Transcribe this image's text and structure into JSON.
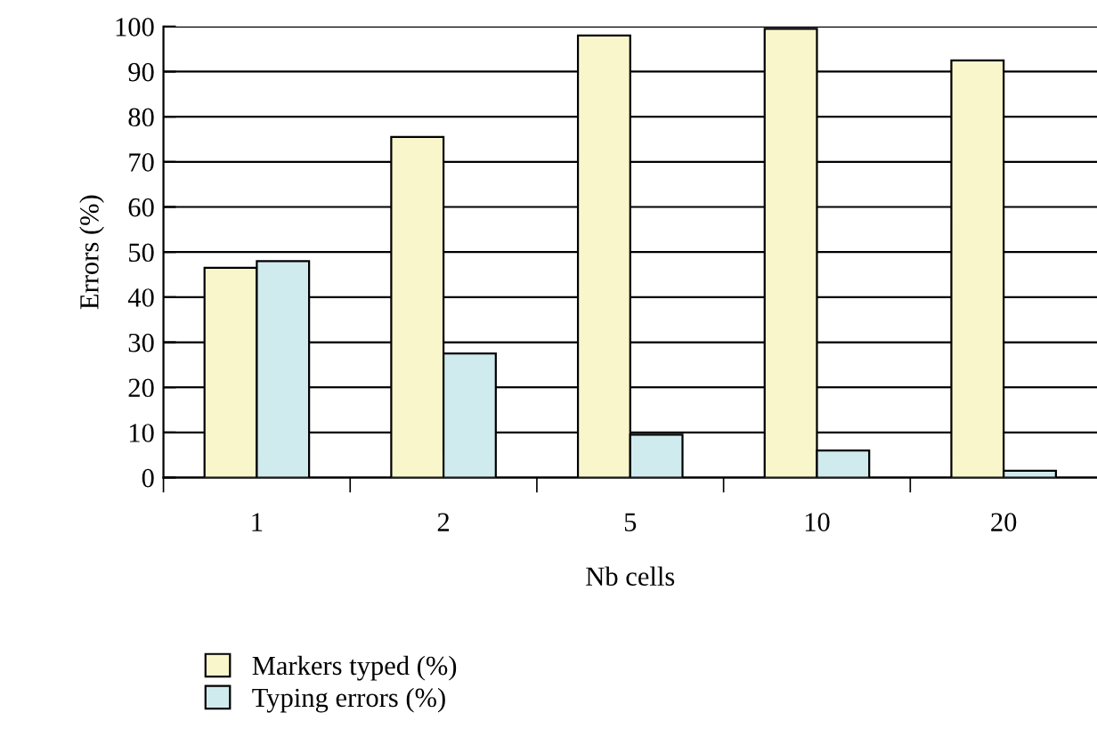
{
  "chart_data": {
    "type": "bar",
    "xlabel": "Nb cells",
    "ylabel": "Errors (%)",
    "categories": [
      "1",
      "2",
      "5",
      "10",
      "20"
    ],
    "series": [
      {
        "name": "Markers typed (%)",
        "color": "#faf6cc",
        "values": [
          46.5,
          75.5,
          98,
          99.5,
          92.5
        ]
      },
      {
        "name": "Typing errors (%)",
        "color": "#d0ebee",
        "values": [
          48,
          27.5,
          9.5,
          6,
          1.5
        ]
      }
    ],
    "ylim": [
      0,
      100
    ],
    "yticks": [
      0,
      10,
      20,
      30,
      40,
      50,
      60,
      70,
      80,
      90,
      100
    ],
    "grid": "y",
    "legend": "bottom left"
  }
}
